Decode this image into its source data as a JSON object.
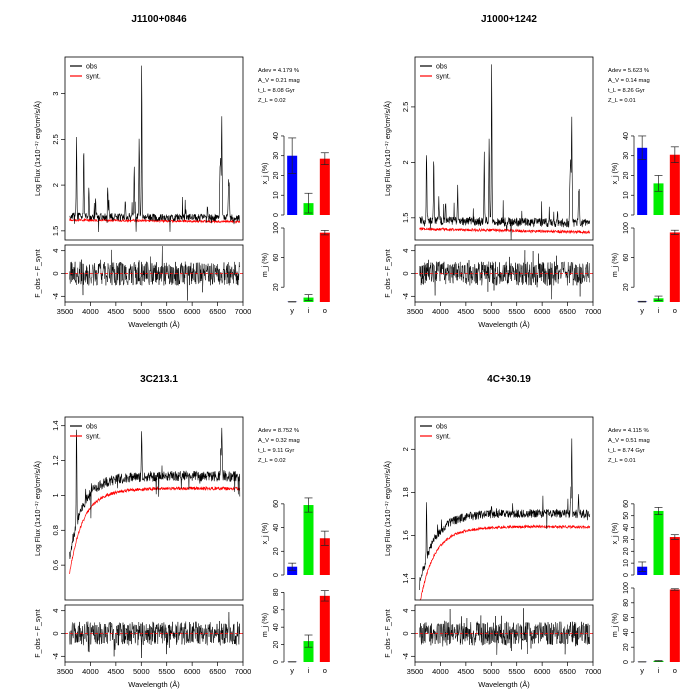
{
  "colors": {
    "obs": "#000000",
    "synt": "#ff0000",
    "young": "#0000ff",
    "intermediate": "#00ee00",
    "old": "#ff0000",
    "zero_line": "#ff0000"
  },
  "labels": {
    "flux_ylabel": "Log Flux (1x10⁻¹⁷ erg/cm²/s/Å)",
    "resid_ylabel": "F_obs − F_synt",
    "xlabel": "Wavelength (Å)",
    "xi_label": "x_j (%)",
    "mj_label": "m_j (%)",
    "legend_obs": "obs",
    "legend_synt": "synt.",
    "bar_categories": [
      "y",
      "i",
      "o"
    ]
  },
  "chart_data": [
    {
      "type": "line",
      "title": "J1100+0846",
      "xlim": [
        3500,
        7000
      ],
      "xticks": [
        3500,
        4000,
        4500,
        5000,
        5500,
        6000,
        6500,
        7000
      ],
      "flux_ylim": [
        1.4,
        3.4
      ],
      "flux_yticks": [
        1.5,
        2,
        2.5,
        3
      ],
      "resid_ylim": [
        -5,
        5
      ],
      "resid_yticks": [
        -4,
        0,
        4
      ],
      "cont_obs": 1.66,
      "cont_synt": 1.62,
      "slope": -0.02,
      "blue_rise": 0,
      "noise": 0.04,
      "lines": [
        [
          3727,
          0.85
        ],
        [
          3869,
          0.75
        ],
        [
          3968,
          0.3
        ],
        [
          4102,
          0.2
        ],
        [
          4340,
          0.35
        ],
        [
          4363,
          0.15
        ],
        [
          4686,
          0.15
        ],
        [
          4861,
          0.55
        ],
        [
          4959,
          0.9
        ],
        [
          5007,
          1.65
        ],
        [
          5876,
          0.1
        ],
        [
          6300,
          0.1
        ],
        [
          6548,
          0.5
        ],
        [
          6563,
          0.65
        ],
        [
          6583,
          1.1
        ],
        [
          6716,
          0.4
        ],
        [
          6731,
          0.35
        ]
      ],
      "stats": [
        "Adev = 4.179 %",
        "A_V = 0.21 mag",
        "t_L = 8.08 Gyr",
        "Z_L = 0.02"
      ],
      "xj": {
        "ylim": [
          0,
          42
        ],
        "yticks": [
          0,
          10,
          20,
          30,
          40
        ],
        "values": [
          30,
          6,
          28.5
        ],
        "errors": [
          9,
          5,
          3
        ]
      },
      "mj": {
        "ylim": [
          0,
          100
        ],
        "yticks": [
          20,
          60,
          100
        ],
        "values": [
          0.3,
          6,
          93.7
        ],
        "errors": [
          0.3,
          4,
          3
        ]
      }
    },
    {
      "type": "line",
      "title": "J1000+1242",
      "xlim": [
        3500,
        7000
      ],
      "xticks": [
        3500,
        4000,
        4500,
        5000,
        5500,
        6000,
        6500,
        7000
      ],
      "flux_ylim": [
        1.3,
        2.95
      ],
      "flux_yticks": [
        1.5,
        2,
        2.5
      ],
      "resid_ylim": [
        -5,
        5
      ],
      "resid_yticks": [
        -4,
        0,
        4
      ],
      "cont_obs": 1.48,
      "cont_synt": 1.4,
      "slope": -0.03,
      "blue_rise": 0,
      "noise": 0.04,
      "lines": [
        [
          3727,
          0.7
        ],
        [
          3869,
          0.55
        ],
        [
          3968,
          0.2
        ],
        [
          4102,
          0.15
        ],
        [
          4340,
          0.3
        ],
        [
          4861,
          0.6
        ],
        [
          4959,
          0.75
        ],
        [
          5007,
          1.4
        ],
        [
          6300,
          0.1
        ],
        [
          6548,
          0.4
        ],
        [
          6563,
          0.6
        ],
        [
          6583,
          0.95
        ],
        [
          6716,
          0.3
        ],
        [
          6731,
          0.25
        ]
      ],
      "stats": [
        "Adev = 5.623 %",
        "A_V = 0.14 mag",
        "t_L = 8.26 Gyr",
        "Z_L = 0.01"
      ],
      "xj": {
        "ylim": [
          0,
          42
        ],
        "yticks": [
          0,
          10,
          20,
          30,
          40
        ],
        "values": [
          34,
          16,
          30.5
        ],
        "errors": [
          6,
          4,
          4
        ]
      },
      "mj": {
        "ylim": [
          0,
          100
        ],
        "yticks": [
          20,
          60,
          100
        ],
        "values": [
          0.5,
          5,
          94
        ],
        "errors": [
          0.5,
          3,
          3
        ]
      }
    },
    {
      "type": "line",
      "title": "3C213.1",
      "xlim": [
        3500,
        7000
      ],
      "xticks": [
        3500,
        4000,
        4500,
        5000,
        5500,
        6000,
        6500,
        7000
      ],
      "flux_ylim": [
        0.4,
        1.45
      ],
      "flux_yticks": [
        0.6,
        0.8,
        1.0,
        1.2,
        1.4
      ],
      "resid_ylim": [
        -5,
        5
      ],
      "resid_yticks": [
        -4,
        0,
        4
      ],
      "cont_obs": 1.13,
      "cont_synt": 1.06,
      "slope": -0.02,
      "blue_rise": -0.42,
      "noise": 0.03,
      "lines": [
        [
          3727,
          0.55
        ],
        [
          5007,
          0.25
        ],
        [
          6563,
          0.15
        ],
        [
          6583,
          0.3
        ]
      ],
      "stats": [
        "Adev = 8.752 %",
        "A_V = 0.32 mag",
        "t_L = 9.11 Gyr",
        "Z_L = 0.02"
      ],
      "xj": {
        "ylim": [
          0,
          70
        ],
        "yticks": [
          0,
          20,
          40,
          60
        ],
        "values": [
          7,
          59,
          31
        ],
        "errors": [
          3,
          6,
          6
        ]
      },
      "mj": {
        "ylim": [
          0,
          85
        ],
        "yticks": [
          0,
          20,
          40,
          60,
          80
        ],
        "values": [
          0.2,
          24,
          76
        ],
        "errors": [
          0.2,
          7,
          6
        ]
      }
    },
    {
      "type": "line",
      "title": "4C+30.19",
      "xlim": [
        3500,
        7000
      ],
      "xticks": [
        3500,
        4000,
        4500,
        5000,
        5500,
        6000,
        6500,
        7000
      ],
      "flux_ylim": [
        1.3,
        2.15
      ],
      "flux_yticks": [
        1.4,
        1.6,
        1.8,
        2.0
      ],
      "resid_ylim": [
        -5,
        5
      ],
      "resid_yticks": [
        -4,
        0,
        4
      ],
      "cont_obs": 1.72,
      "cont_synt": 1.66,
      "slope": -0.02,
      "blue_rise": -0.3,
      "noise": 0.02,
      "lines": [
        [
          3727,
          0.25
        ],
        [
          5007,
          0.05
        ],
        [
          6563,
          0.15
        ],
        [
          6583,
          0.35
        ],
        [
          6716,
          0.08
        ]
      ],
      "stats": [
        "Adev = 4.115 %",
        "A_V = 0.51 mag",
        "t_L = 8.74 Gyr",
        "Z_L = 0.01"
      ],
      "xj": {
        "ylim": [
          0,
          70
        ],
        "yticks": [
          0,
          10,
          20,
          30,
          40,
          50,
          60
        ],
        "values": [
          7,
          54,
          32
        ],
        "errors": [
          4,
          3,
          2
        ]
      },
      "mj": {
        "ylim": [
          0,
          100
        ],
        "yticks": [
          0,
          20,
          40,
          60,
          80,
          100
        ],
        "values": [
          0.2,
          1.5,
          98
        ],
        "errors": [
          0.2,
          0.5,
          1
        ]
      }
    }
  ]
}
